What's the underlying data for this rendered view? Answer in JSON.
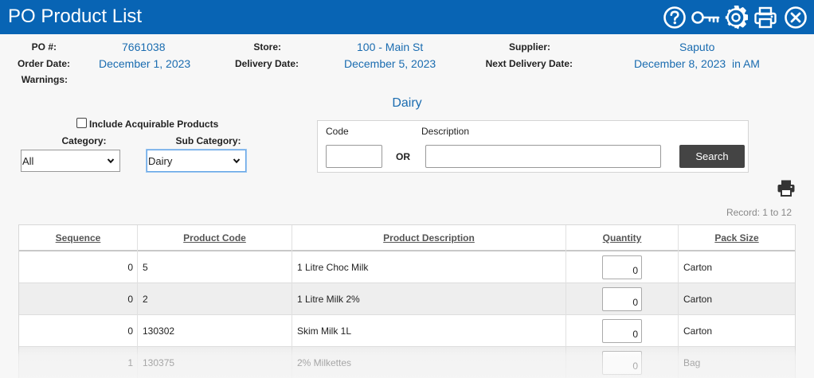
{
  "header": {
    "title": "PO Product List",
    "icons": [
      "help-icon",
      "key-icon",
      "gear-icon",
      "print-icon",
      "close-icon"
    ]
  },
  "po": {
    "po_label": "PO #:",
    "po_value": "7661038",
    "store_label": "Store:",
    "store_value": "100 - Main St",
    "supplier_label": "Supplier:",
    "supplier_value": "Saputo",
    "order_date_label": "Order Date:",
    "order_date_value": "December 1, 2023",
    "delivery_date_label": "Delivery Date:",
    "delivery_date_value": "December 5, 2023",
    "next_delivery_label": "Next Delivery Date:",
    "next_delivery_value": "December 8, 2023  in AM",
    "warnings_label": "Warnings:"
  },
  "department": "Dairy",
  "filters": {
    "include_acquirable_label": "Include Acquirable Products",
    "include_acquirable_checked": false,
    "category_label": "Category:",
    "category_value": "All",
    "subcategory_label": "Sub Category:",
    "subcategory_value": "Dairy"
  },
  "search": {
    "code_label": "Code",
    "code_value": "",
    "or_label": "OR",
    "description_label": "Description",
    "description_value": "",
    "button_label": "Search"
  },
  "records_text": "Record: 1 to 12",
  "table": {
    "columns": [
      "Sequence",
      "Product Code",
      "Product Description",
      "Quantity",
      "Pack Size"
    ],
    "rows": [
      {
        "sequence": "0",
        "code": "5",
        "description": "1 Litre Choc Milk",
        "quantity": "0",
        "pack": "Carton"
      },
      {
        "sequence": "0",
        "code": "2",
        "description": "1 Litre Milk 2%",
        "quantity": "0",
        "pack": "Carton"
      },
      {
        "sequence": "0",
        "code": "130302",
        "description": "Skim Milk 1L",
        "quantity": "0",
        "pack": "Carton"
      },
      {
        "sequence": "1",
        "code": "130375",
        "description": "2% Milkettes",
        "quantity": "0",
        "pack": "Bag"
      }
    ]
  },
  "colors": {
    "titlebar": "#0864b4",
    "link_blue": "#1a6cb0",
    "search_button": "#444444"
  }
}
